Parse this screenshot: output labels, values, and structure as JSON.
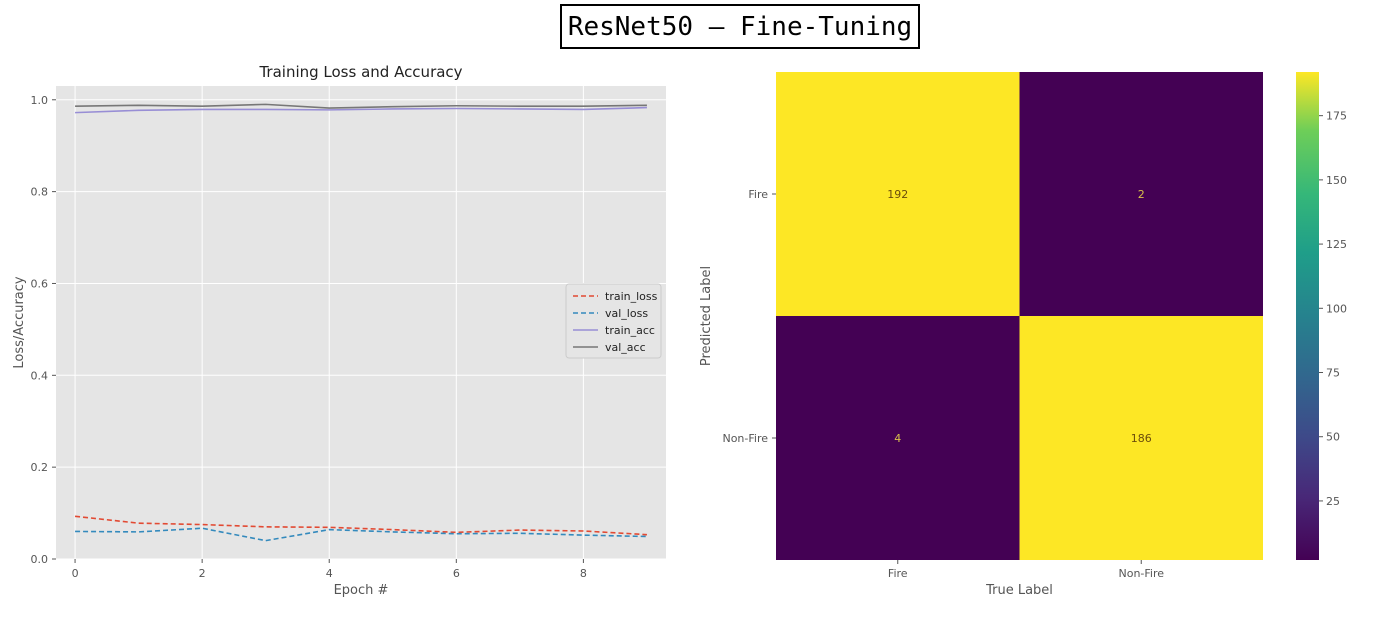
{
  "page_title": "ResNet50 – Fine-Tuning",
  "chart_data": [
    {
      "type": "line",
      "title": "Training Loss and Accuracy",
      "xlabel": "Epoch #",
      "ylabel": "Loss/Accuracy",
      "xlim": [
        -0.3,
        9.3
      ],
      "ylim": [
        0.0,
        1.03
      ],
      "xticks": [
        "0",
        "2",
        "4",
        "6",
        "8"
      ],
      "yticks": [
        "0.0",
        "0.2",
        "0.4",
        "0.6",
        "0.8",
        "1.0"
      ],
      "grid": true,
      "legend_position": "center-right",
      "x": [
        0,
        1,
        2,
        3,
        4,
        5,
        6,
        7,
        8,
        9
      ],
      "series": [
        {
          "name": "train_loss",
          "style": "dashed",
          "color": "#e24a33",
          "values": [
            0.093,
            0.078,
            0.075,
            0.07,
            0.069,
            0.064,
            0.058,
            0.063,
            0.061,
            0.053
          ]
        },
        {
          "name": "val_loss",
          "style": "dashed",
          "color": "#348abd",
          "values": [
            0.06,
            0.059,
            0.067,
            0.04,
            0.064,
            0.059,
            0.055,
            0.056,
            0.052,
            0.049
          ]
        },
        {
          "name": "train_acc",
          "style": "solid",
          "color": "#988ed5",
          "values": [
            0.972,
            0.977,
            0.979,
            0.979,
            0.978,
            0.98,
            0.981,
            0.98,
            0.979,
            0.983
          ]
        },
        {
          "name": "val_acc",
          "style": "solid",
          "color": "#777777",
          "values": [
            0.986,
            0.988,
            0.986,
            0.99,
            0.982,
            0.985,
            0.987,
            0.986,
            0.986,
            0.988
          ]
        }
      ]
    },
    {
      "type": "heatmap",
      "xlabel": "True Label",
      "ylabel": "Predicted Label",
      "x_categories": [
        "Fire",
        "Non-Fire"
      ],
      "y_categories": [
        "Fire",
        "Non-Fire"
      ],
      "values": [
        [
          192,
          2
        ],
        [
          4,
          186
        ]
      ],
      "colormap": "viridis",
      "colorbar_ticks": [
        "25",
        "50",
        "75",
        "100",
        "125",
        "150",
        "175"
      ],
      "colorbar_range": [
        2,
        192
      ]
    }
  ]
}
